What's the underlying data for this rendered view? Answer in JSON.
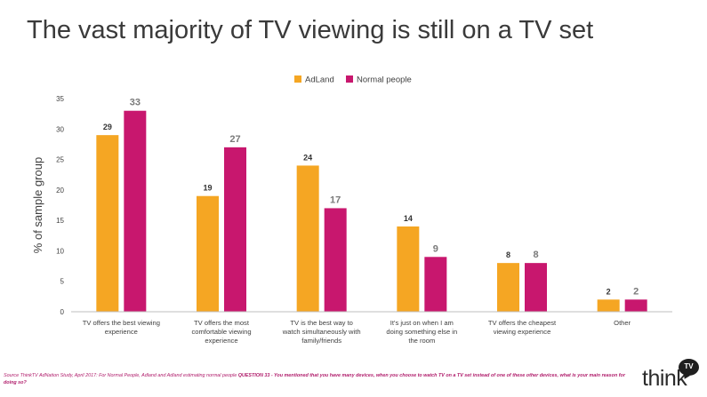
{
  "title": "The vast majority of TV viewing is still on a TV set",
  "colors": {
    "adland": "#F5A623",
    "normal": "#C8176E",
    "axis": "#bfbfbf",
    "text": "#404040"
  },
  "chart_data": {
    "type": "bar",
    "ylabel": "% of sample group",
    "ylim": [
      0,
      35
    ],
    "yticks": [
      0,
      5,
      10,
      15,
      20,
      25,
      30,
      35
    ],
    "categories": [
      [
        "TV offers the best viewing",
        "experience"
      ],
      [
        "TV offers the most",
        "comfortable viewing",
        "experience"
      ],
      [
        "TV is the best way to",
        "watch simultaneously with",
        "family/friends"
      ],
      [
        "It's just on when I am",
        "doing something else in",
        "the room"
      ],
      [
        "TV offers the cheapest",
        "viewing experience"
      ],
      [
        "Other"
      ]
    ],
    "series": [
      {
        "name": "AdLand",
        "values": [
          29,
          19,
          24,
          14,
          8,
          2
        ]
      },
      {
        "name": "Normal people",
        "values": [
          33,
          27,
          17,
          9,
          8,
          2
        ]
      }
    ],
    "legend_position": "top",
    "grid": false
  },
  "source": {
    "prefix": "Source ThinkTV AdNation Study, April 2017: For Normal People, Adland and Adland estimating normal people",
    "question_label": "QUESTION 33 - You mentioned that you have many devices, when you choose to watch TV on a TV set instead of one of these other devices, what is your main reason for doing so?"
  },
  "logo": {
    "text": "think",
    "badge": "TV"
  }
}
